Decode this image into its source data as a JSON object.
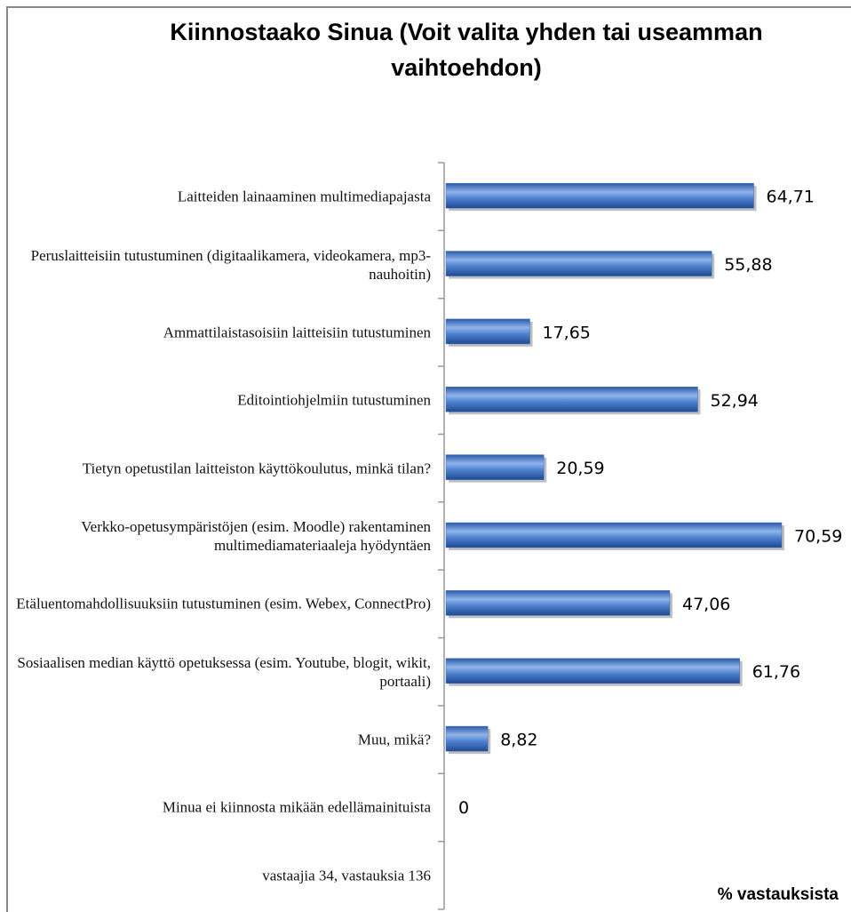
{
  "chart_data": {
    "type": "bar",
    "orientation": "horizontal",
    "title": "Kiinnostaako Sinua (Voit valita yhden tai useamman vaihtoehdon)",
    "x_label": "% vastauksista",
    "categories": [
      "Laitteiden lainaaminen multimediapajasta",
      "Peruslaitteisiin tutustuminen (digitaalikamera, videokamera, mp3-nauhoitin)",
      "Ammattilaistasoisiin laitteisiin tutustuminen",
      "Editointiohjelmiin tutustuminen",
      "Tietyn opetustilan laitteiston käyttökoulutus, minkä tilan?",
      "Verkko-opetusympäristöjen (esim. Moodle) rakentaminen multimediamateriaaleja hyödyntäen",
      "Etäluentomahdollisuuksiin tutustuminen (esim. Webex, ConnectPro)",
      "Sosiaalisen median käyttö opetuksessa (esim. Youtube, blogit, wikit, portaali)",
      "Muu, mikä?",
      "Minua ei kiinnosta mikään edellämainituista",
      "vastaajia 34, vastauksia 136"
    ],
    "values": [
      64.71,
      55.88,
      17.65,
      52.94,
      20.59,
      70.59,
      47.06,
      61.76,
      8.82,
      0,
      null
    ],
    "value_labels": [
      "64,71",
      "55,88",
      "17,65",
      "52,94",
      "20,59",
      "70,59",
      "47,06",
      "61,76",
      "8,82",
      "0",
      null
    ],
    "color": "#3a6fc0"
  }
}
